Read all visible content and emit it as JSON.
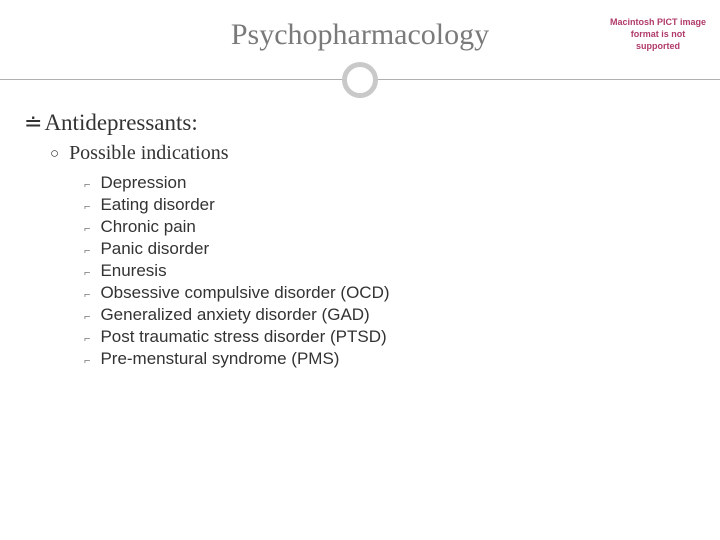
{
  "slide": {
    "title": "Psychopharmacology",
    "placeholder_text": "Macintosh PICT image format is not supported",
    "heading": "Antidepressants:",
    "subheading": "Possible indications",
    "items": [
      "Depression",
      "Eating disorder",
      "Chronic pain",
      "Panic disorder",
      "Enuresis",
      "Obsessive compulsive disorder (OCD)",
      "Generalized anxiety disorder (GAD)",
      "Post traumatic stress disorder (PTSD)",
      "Pre-menstural syndrome (PMS)"
    ],
    "colors": {
      "title_color": "#7a7a7a",
      "text_color": "#333333",
      "placeholder_color": "#b03a6a",
      "line_color": "#b0b0b0",
      "circle_border": "#c9c9c9",
      "background": "#ffffff"
    },
    "bullets": {
      "level1": "≐",
      "level2": "○",
      "level3": "⌐"
    }
  }
}
